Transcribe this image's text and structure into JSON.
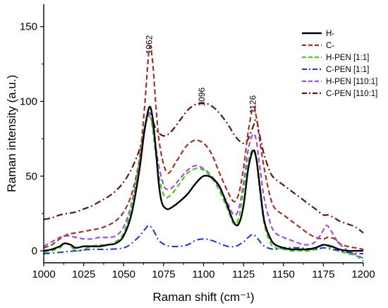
{
  "chart_data": {
    "type": "line",
    "xlabel": "Raman shift (cm⁻¹)",
    "ylabel": "Raman intensity (a.u.)",
    "xlim": [
      1000,
      1200
    ],
    "ylim": [
      -8,
      165
    ],
    "xticks": [
      "1000",
      "1025",
      "1050",
      "1075",
      "1100",
      "1125",
      "1150",
      "1175",
      "1200"
    ],
    "yticks": [
      "0",
      "50",
      "100",
      "150"
    ],
    "grid": false,
    "legend_position": "top-right",
    "annotations": [
      {
        "text": "1062",
        "x": 1066,
        "y": 138
      },
      {
        "text": "1096",
        "x": 1099,
        "y": 103
      },
      {
        "text": "1126",
        "x": 1131,
        "y": 98
      }
    ],
    "series": [
      {
        "name": "H-",
        "color": "#000000",
        "style": "solid",
        "width": 2.4,
        "x": [
          1000,
          1005,
          1010,
          1013,
          1017,
          1020,
          1025,
          1030,
          1035,
          1040,
          1045,
          1050,
          1055,
          1060,
          1063,
          1066,
          1068,
          1070,
          1072,
          1074,
          1077,
          1080,
          1085,
          1090,
          1095,
          1100,
          1105,
          1110,
          1115,
          1119,
          1122,
          1125,
          1128,
          1131,
          1133,
          1135,
          1138,
          1142,
          1145,
          1150,
          1155,
          1160,
          1165,
          1170,
          1175,
          1180,
          1185,
          1190,
          1195,
          1200
        ],
        "y": [
          0,
          1,
          3,
          5,
          4,
          2,
          3,
          3,
          3,
          4,
          5,
          10,
          25,
          55,
          80,
          96,
          90,
          70,
          45,
          32,
          28,
          29,
          33,
          38,
          45,
          50,
          49,
          43,
          30,
          19,
          18,
          30,
          55,
          67,
          62,
          45,
          20,
          8,
          4,
          2,
          1,
          1,
          1,
          2,
          4,
          3,
          1,
          0,
          0,
          0
        ]
      },
      {
        "name": "C-",
        "color": "#a0322a",
        "style": "dashed",
        "width": 2.2,
        "x": [
          1000,
          1005,
          1010,
          1015,
          1020,
          1025,
          1030,
          1035,
          1040,
          1045,
          1050,
          1055,
          1060,
          1063,
          1066,
          1068,
          1070,
          1072,
          1075,
          1078,
          1082,
          1086,
          1090,
          1095,
          1100,
          1105,
          1110,
          1115,
          1119,
          1122,
          1125,
          1128,
          1131,
          1133,
          1135,
          1138,
          1142,
          1145,
          1150,
          1155,
          1160,
          1165,
          1170,
          1175,
          1178,
          1182,
          1185,
          1190,
          1195,
          1200
        ],
        "y": [
          2,
          4,
          8,
          11,
          12,
          13,
          14,
          15,
          17,
          20,
          26,
          38,
          62,
          95,
          135,
          128,
          100,
          75,
          58,
          52,
          58,
          65,
          71,
          74,
          72,
          65,
          52,
          40,
          33,
          38,
          55,
          80,
          96,
          90,
          75,
          55,
          35,
          28,
          24,
          20,
          16,
          12,
          9,
          8,
          9,
          8,
          5,
          3,
          2,
          1
        ]
      },
      {
        "name": "H-PEN [1:1]",
        "color": "#44cc22",
        "style": "dashed",
        "width": 2.2,
        "x": [
          1000,
          1005,
          1010,
          1013,
          1016,
          1019,
          1022,
          1025,
          1030,
          1035,
          1040,
          1045,
          1050,
          1055,
          1060,
          1063,
          1066,
          1068,
          1070,
          1073,
          1076,
          1080,
          1085,
          1090,
          1095,
          1100,
          1105,
          1110,
          1115,
          1119,
          1122,
          1125,
          1128,
          1131,
          1133,
          1135,
          1138,
          1142,
          1145,
          1150,
          1155,
          1160,
          1165,
          1170,
          1175,
          1180,
          1185,
          1190,
          1195,
          1200
        ],
        "y": [
          -1,
          0,
          2,
          5,
          4,
          1,
          0,
          1,
          3,
          4,
          4,
          6,
          12,
          30,
          60,
          82,
          90,
          83,
          65,
          45,
          36,
          38,
          45,
          52,
          55,
          54,
          49,
          40,
          28,
          18,
          22,
          40,
          60,
          68,
          62,
          42,
          18,
          5,
          2,
          1,
          0,
          0,
          0,
          1,
          4,
          2,
          0,
          -2,
          -3,
          -7
        ]
      },
      {
        "name": "C-PEN [1:1]",
        "color": "#1a36c8",
        "style": "dashdot",
        "width": 2.0,
        "x": [
          1000,
          1010,
          1020,
          1030,
          1040,
          1050,
          1055,
          1060,
          1063,
          1066,
          1069,
          1072,
          1076,
          1080,
          1085,
          1090,
          1095,
          1100,
          1105,
          1110,
          1115,
          1120,
          1125,
          1128,
          1131,
          1134,
          1137,
          1140,
          1145,
          1150,
          1160,
          1170,
          1175,
          1180,
          1185,
          1190,
          1200
        ],
        "y": [
          -2,
          -1,
          0,
          1,
          1,
          2,
          5,
          10,
          14,
          17,
          13,
          7,
          4,
          3,
          3,
          4,
          7,
          8,
          7,
          5,
          3,
          3,
          6,
          9,
          11,
          8,
          4,
          2,
          1,
          2,
          2,
          1,
          2,
          1,
          0,
          -1,
          -2
        ]
      },
      {
        "name": "H-PEN [110:1]",
        "color": "#a050e0",
        "style": "dashed",
        "width": 2.2,
        "x": [
          1000,
          1005,
          1010,
          1015,
          1020,
          1025,
          1030,
          1035,
          1040,
          1045,
          1050,
          1055,
          1060,
          1063,
          1066,
          1068,
          1070,
          1073,
          1076,
          1080,
          1085,
          1090,
          1095,
          1100,
          1105,
          1110,
          1115,
          1119,
          1122,
          1125,
          1128,
          1131,
          1133,
          1135,
          1138,
          1142,
          1145,
          1150,
          1155,
          1160,
          1165,
          1170,
          1174,
          1177,
          1180,
          1184,
          1188,
          1192,
          1196,
          1200
        ],
        "y": [
          3,
          6,
          9,
          10,
          9,
          8,
          8,
          9,
          9,
          10,
          16,
          32,
          60,
          82,
          92,
          85,
          70,
          52,
          42,
          42,
          48,
          54,
          57,
          55,
          50,
          42,
          32,
          24,
          28,
          45,
          68,
          78,
          74,
          58,
          35,
          18,
          12,
          9,
          7,
          5,
          4,
          6,
          12,
          17,
          13,
          6,
          2,
          -1,
          -3,
          -5
        ]
      },
      {
        "name": "C-PEN [110:1]",
        "color": "#5a1a14",
        "style": "dashdot",
        "width": 2.2,
        "x": [
          1000,
          1005,
          1010,
          1015,
          1020,
          1025,
          1030,
          1035,
          1040,
          1045,
          1050,
          1055,
          1060,
          1063,
          1066,
          1068,
          1070,
          1073,
          1076,
          1080,
          1085,
          1090,
          1095,
          1100,
          1105,
          1110,
          1115,
          1119,
          1122,
          1125,
          1128,
          1131,
          1133,
          1135,
          1138,
          1142,
          1145,
          1150,
          1155,
          1160,
          1165,
          1170,
          1175,
          1178,
          1182,
          1185,
          1190,
          1195,
          1200
        ],
        "y": [
          21,
          22,
          24,
          25,
          26,
          28,
          30,
          33,
          36,
          40,
          46,
          55,
          68,
          82,
          92,
          88,
          82,
          78,
          77,
          80,
          87,
          94,
          98,
          99,
          97,
          92,
          85,
          78,
          74,
          72,
          75,
          83,
          88,
          78,
          64,
          52,
          48,
          44,
          40,
          36,
          32,
          28,
          24,
          24,
          22,
          20,
          18,
          16,
          12
        ]
      }
    ]
  }
}
